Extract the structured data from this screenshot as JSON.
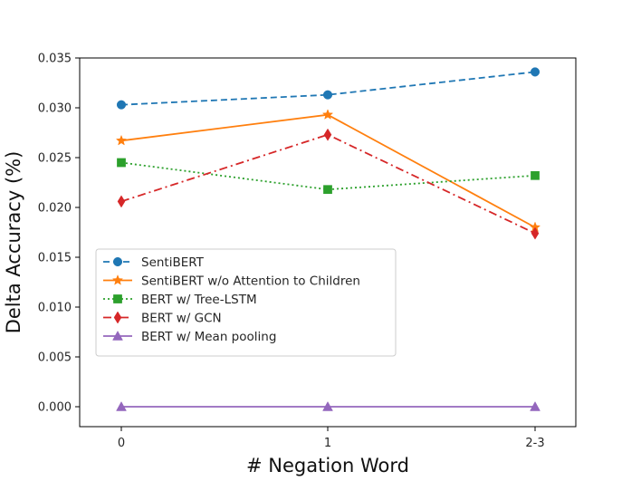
{
  "chart_data": {
    "type": "line",
    "title": "",
    "xlabel": "# Negation Word",
    "ylabel": "Delta Accuracy (%)",
    "categories": [
      "0",
      "1",
      "2-3"
    ],
    "ylim": [
      -0.002,
      0.035
    ],
    "yticks": [
      "0.000",
      "0.005",
      "0.010",
      "0.015",
      "0.020",
      "0.025",
      "0.030",
      "0.035"
    ],
    "grid": false,
    "legend_position": "center-left",
    "series": [
      {
        "name": "SentiBERT",
        "values": [
          0.0303,
          0.0313,
          0.0336
        ],
        "color": "#1f77b4",
        "marker": "circle",
        "linestyle": "dashed"
      },
      {
        "name": "SentiBERT w/o Attention to Children",
        "values": [
          0.0267,
          0.0293,
          0.018
        ],
        "color": "#ff7f0e",
        "marker": "star",
        "linestyle": "solid"
      },
      {
        "name": "BERT w/ Tree-LSTM",
        "values": [
          0.0245,
          0.0218,
          0.0232
        ],
        "color": "#2ca02c",
        "marker": "square",
        "linestyle": "dotted"
      },
      {
        "name": "BERT w/ GCN",
        "values": [
          0.0206,
          0.0273,
          0.0174
        ],
        "color": "#d62728",
        "marker": "diamond",
        "linestyle": "dashdot"
      },
      {
        "name": "BERT w/ Mean pooling",
        "values": [
          0.0,
          0.0,
          0.0
        ],
        "color": "#9467bd",
        "marker": "triangle",
        "linestyle": "solid"
      }
    ]
  }
}
